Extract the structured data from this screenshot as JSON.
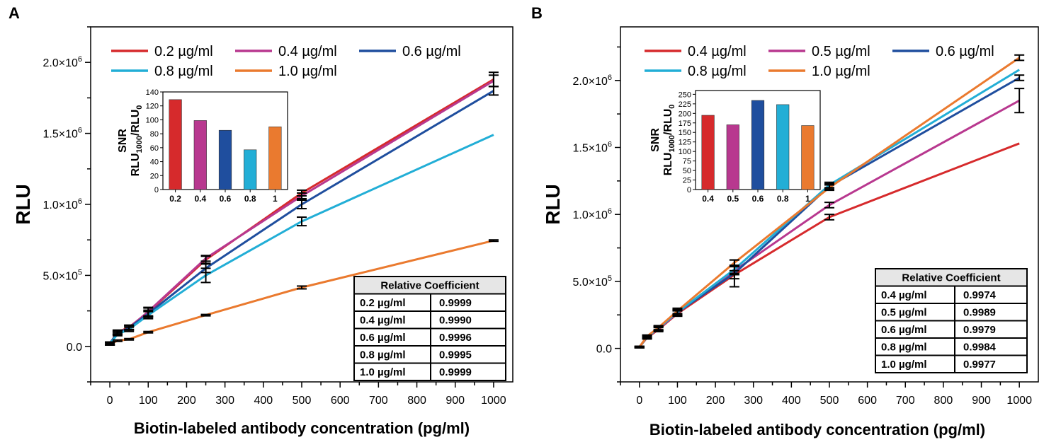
{
  "panels": [
    {
      "panel_label": "A",
      "ylabel": "RLU",
      "xlabel": "Biotin-labeled antibody concentration (pg/ml)",
      "x_ticks": [
        0,
        100,
        200,
        300,
        400,
        500,
        600,
        700,
        800,
        900,
        1000
      ],
      "y_ticks": [
        {
          "value": 0,
          "label": "0.0"
        },
        {
          "value": 500000,
          "label": "5.0×10",
          "exp": "5"
        },
        {
          "value": 1000000,
          "label": "1.0×10",
          "exp": "6"
        },
        {
          "value": 1500000,
          "label": "1.5×10",
          "exp": "6"
        },
        {
          "value": 2000000,
          "label": "2.0×10",
          "exp": "6"
        }
      ],
      "xlim": [
        -50,
        1050
      ],
      "ylim": [
        -250000,
        2250000
      ],
      "series": [
        {
          "name": "0.2 µg/ml",
          "color": "#d62a2c",
          "x": [
            0,
            20,
            50,
            100,
            250,
            500,
            1000
          ],
          "y": [
            20000,
            100000,
            135000,
            240000,
            610000,
            1080000,
            1880000
          ],
          "err": [
            10000,
            15000,
            15000,
            30000,
            25000,
            20000,
            50000
          ]
        },
        {
          "name": "0.4 µg/ml",
          "color": "#b8388f",
          "x": [
            0,
            20,
            50,
            100,
            250,
            500,
            1000
          ],
          "y": [
            20000,
            95000,
            130000,
            245000,
            620000,
            1060000,
            1870000
          ],
          "err": [
            10000,
            12000,
            15000,
            30000,
            20000,
            20000,
            40000
          ]
        },
        {
          "name": "0.6 µg/ml",
          "color": "#1f4e9e",
          "x": [
            0,
            20,
            50,
            100,
            250,
            500,
            1000
          ],
          "y": [
            20000,
            95000,
            130000,
            230000,
            550000,
            1000000,
            1800000
          ],
          "err": [
            10000,
            10000,
            15000,
            25000,
            30000,
            30000,
            30000
          ]
        },
        {
          "name": "0.8 µg/ml",
          "color": "#22aed6",
          "x": [
            0,
            20,
            50,
            100,
            250,
            500,
            1000
          ],
          "y": [
            20000,
            85000,
            120000,
            220000,
            500000,
            880000,
            1490000
          ],
          "err": [
            10000,
            10000,
            15000,
            25000,
            50000,
            30000,
            0
          ]
        },
        {
          "name": "1.0 µg/ml",
          "color": "#ea7a2f",
          "x": [
            0,
            20,
            50,
            100,
            250,
            500,
            1000
          ],
          "y": [
            15000,
            40000,
            50000,
            100000,
            220000,
            415000,
            745000
          ],
          "err": [
            5000,
            5000,
            5000,
            5000,
            5000,
            10000,
            5000
          ]
        }
      ],
      "inset": {
        "ylabel_top": "SNR",
        "ylabel_main": "RLU",
        "ylabel_sub1": "1000",
        "ylabel_mid": "/RLU",
        "ylabel_sub2": "0",
        "categories": [
          "0.2",
          "0.4",
          "0.6",
          "0.8",
          "1"
        ],
        "values": [
          129,
          99,
          85,
          57,
          90
        ],
        "colors": [
          "#d62a2c",
          "#b8388f",
          "#1f4e9e",
          "#22aed6",
          "#ea7a2f"
        ],
        "ylim": [
          0,
          140
        ],
        "y_ticks": [
          0,
          20,
          40,
          60,
          80,
          100,
          120,
          140
        ]
      },
      "table": {
        "header": "Relative Coefficient",
        "rows": [
          [
            "0.2 µg/ml",
            "0.9999"
          ],
          [
            "0.4 µg/ml",
            "0.9990"
          ],
          [
            "0.6 µg/ml",
            "0.9996"
          ],
          [
            "0.8 µg/ml",
            "0.9995"
          ],
          [
            "1.0 µg/ml",
            "0.9999"
          ]
        ]
      }
    },
    {
      "panel_label": "B",
      "ylabel": "RLU",
      "xlabel": "Biotin-labeled antibody concentration (pg/ml)",
      "x_ticks": [
        0,
        100,
        200,
        300,
        400,
        500,
        600,
        700,
        800,
        900,
        1000
      ],
      "y_ticks": [
        {
          "value": 0,
          "label": "0.0"
        },
        {
          "value": 500000,
          "label": "5.0×10",
          "exp": "5"
        },
        {
          "value": 1000000,
          "label": "1.0×10",
          "exp": "6"
        },
        {
          "value": 1500000,
          "label": "1.5×10",
          "exp": "6"
        },
        {
          "value": 2000000,
          "label": "2.0×10",
          "exp": "6"
        }
      ],
      "xlim": [
        -50,
        1050
      ],
      "ylim": [
        -250000,
        2400000
      ],
      "series": [
        {
          "name": "0.4 µg/ml",
          "color": "#d62a2c",
          "x": [
            0,
            20,
            50,
            100,
            250,
            500,
            1000
          ],
          "y": [
            10000,
            80000,
            140000,
            260000,
            550000,
            980000,
            1530000
          ],
          "err": [
            5000,
            10000,
            15000,
            20000,
            30000,
            20000,
            0
          ]
        },
        {
          "name": "0.5 µg/ml",
          "color": "#b8388f",
          "x": [
            0,
            20,
            50,
            100,
            250,
            500,
            1000
          ],
          "y": [
            10000,
            85000,
            145000,
            265000,
            580000,
            1070000,
            1850000
          ],
          "err": [
            5000,
            10000,
            15000,
            20000,
            30000,
            20000,
            90000
          ]
        },
        {
          "name": "0.6 µg/ml",
          "color": "#1f4e9e",
          "x": [
            0,
            20,
            50,
            100,
            250,
            500,
            1000
          ],
          "y": [
            10000,
            85000,
            150000,
            270000,
            560000,
            1210000,
            2020000
          ],
          "err": [
            5000,
            10000,
            15000,
            20000,
            100000,
            20000,
            20000
          ]
        },
        {
          "name": "0.8 µg/ml",
          "color": "#22aed6",
          "x": [
            0,
            20,
            50,
            100,
            250,
            500,
            1000
          ],
          "y": [
            10000,
            85000,
            150000,
            270000,
            590000,
            1220000,
            2080000
          ],
          "err": [
            5000,
            10000,
            15000,
            20000,
            30000,
            20000,
            0
          ]
        },
        {
          "name": "1.0 µg/ml",
          "color": "#ea7a2f",
          "x": [
            0,
            20,
            50,
            100,
            250,
            500,
            1000
          ],
          "y": [
            10000,
            90000,
            155000,
            280000,
            640000,
            1200000,
            2170000
          ],
          "err": [
            5000,
            10000,
            15000,
            20000,
            20000,
            20000,
            20000
          ]
        }
      ],
      "inset": {
        "ylabel_top": "SNR",
        "ylabel_main": "RLU",
        "ylabel_sub1": "1000",
        "ylabel_mid": "/RLU",
        "ylabel_sub2": "0",
        "categories": [
          "0.4",
          "0.5",
          "0.6",
          "0.8",
          "1"
        ],
        "values": [
          195,
          170,
          234,
          223,
          168
        ],
        "colors": [
          "#d62a2c",
          "#b8388f",
          "#1f4e9e",
          "#22aed6",
          "#ea7a2f"
        ],
        "ylim": [
          0,
          260
        ],
        "y_ticks": [
          0,
          25,
          50,
          75,
          100,
          125,
          150,
          175,
          200,
          225,
          250
        ]
      },
      "table": {
        "header": "Relative Coefficient",
        "rows": [
          [
            "0.4 µg/ml",
            "0.9974"
          ],
          [
            "0.5 µg/ml",
            "0.9989"
          ],
          [
            "0.6 µg/ml",
            "0.9979"
          ],
          [
            "0.8 µg/ml",
            "0.9984"
          ],
          [
            "1.0 µg/ml",
            "0.9977"
          ]
        ]
      }
    }
  ],
  "chart_data": [
    {
      "type": "line",
      "title": "A",
      "xlabel": "Biotin-labeled antibody concentration (pg/ml)",
      "ylabel": "RLU",
      "x": [
        0,
        20,
        50,
        100,
        250,
        500,
        1000
      ],
      "xlim": [
        -50,
        1050
      ],
      "ylim": [
        -250000,
        2250000
      ],
      "series": [
        {
          "name": "0.2 µg/ml",
          "values": [
            20000,
            100000,
            135000,
            240000,
            610000,
            1080000,
            1880000
          ]
        },
        {
          "name": "0.4 µg/ml",
          "values": [
            20000,
            95000,
            130000,
            245000,
            620000,
            1060000,
            1870000
          ]
        },
        {
          "name": "0.6 µg/ml",
          "values": [
            20000,
            95000,
            130000,
            230000,
            550000,
            1000000,
            1800000
          ]
        },
        {
          "name": "0.8 µg/ml",
          "values": [
            20000,
            85000,
            120000,
            220000,
            500000,
            880000,
            1490000
          ]
        },
        {
          "name": "1.0 µg/ml",
          "values": [
            15000,
            40000,
            50000,
            100000,
            220000,
            415000,
            745000
          ]
        }
      ],
      "inset": {
        "type": "bar",
        "ylabel": "SNR RLU1000/RLU0",
        "categories": [
          "0.2",
          "0.4",
          "0.6",
          "0.8",
          "1"
        ],
        "values": [
          129,
          99,
          85,
          57,
          90
        ],
        "ylim": [
          0,
          140
        ]
      },
      "table": {
        "header": "Relative Coefficient",
        "rows": [
          [
            "0.2 µg/ml",
            "0.9999"
          ],
          [
            "0.4 µg/ml",
            "0.9990"
          ],
          [
            "0.6 µg/ml",
            "0.9996"
          ],
          [
            "0.8 µg/ml",
            "0.9995"
          ],
          [
            "1.0 µg/ml",
            "0.9999"
          ]
        ]
      }
    },
    {
      "type": "line",
      "title": "B",
      "xlabel": "Biotin-labeled antibody concentration (pg/ml)",
      "ylabel": "RLU",
      "x": [
        0,
        20,
        50,
        100,
        250,
        500,
        1000
      ],
      "xlim": [
        -50,
        1050
      ],
      "ylim": [
        -250000,
        2400000
      ],
      "series": [
        {
          "name": "0.4 µg/ml",
          "values": [
            10000,
            80000,
            140000,
            260000,
            550000,
            980000,
            1530000
          ]
        },
        {
          "name": "0.5 µg/ml",
          "values": [
            10000,
            85000,
            145000,
            265000,
            580000,
            1070000,
            1850000
          ]
        },
        {
          "name": "0.6 µg/ml",
          "values": [
            10000,
            85000,
            150000,
            270000,
            560000,
            1210000,
            2020000
          ]
        },
        {
          "name": "0.8 µg/ml",
          "values": [
            10000,
            85000,
            150000,
            270000,
            590000,
            1220000,
            2080000
          ]
        },
        {
          "name": "1.0 µg/ml",
          "values": [
            10000,
            90000,
            155000,
            280000,
            640000,
            1200000,
            2170000
          ]
        }
      ],
      "inset": {
        "type": "bar",
        "ylabel": "SNR RLU1000/RLU0",
        "categories": [
          "0.4",
          "0.5",
          "0.6",
          "0.8",
          "1"
        ],
        "values": [
          195,
          170,
          234,
          223,
          168
        ],
        "ylim": [
          0,
          260
        ]
      },
      "table": {
        "header": "Relative Coefficient",
        "rows": [
          [
            "0.4 µg/ml",
            "0.9974"
          ],
          [
            "0.5 µg/ml",
            "0.9989"
          ],
          [
            "0.6 µg/ml",
            "0.9979"
          ],
          [
            "0.8 µg/ml",
            "0.9984"
          ],
          [
            "1.0 µg/ml",
            "0.9977"
          ]
        ]
      }
    }
  ]
}
